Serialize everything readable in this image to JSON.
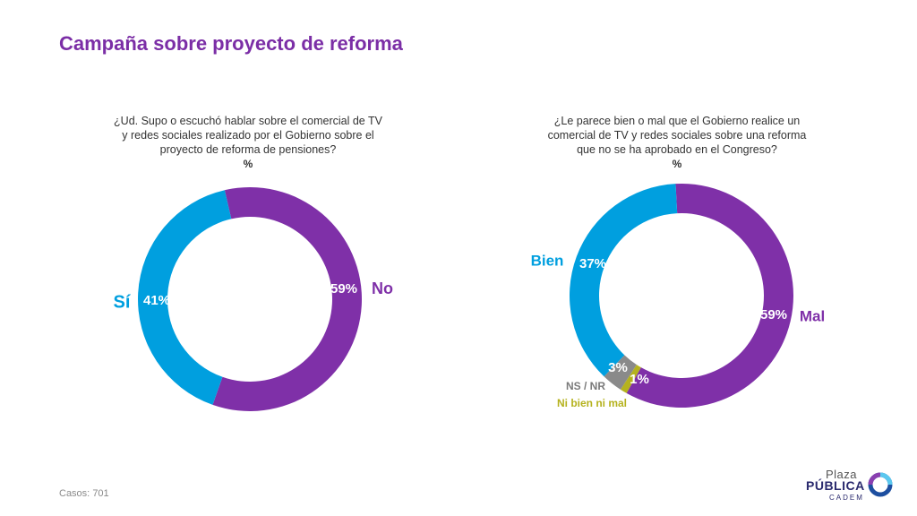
{
  "page": {
    "title": "Campaña sobre proyecto de reforma"
  },
  "footer": {
    "cases_label": "Casos:",
    "cases_value": "701"
  },
  "logo": {
    "line1": "Plaza",
    "line2": "PÚBLICA",
    "line3": "CADEM"
  },
  "colors": {
    "title": "#7b2ea6",
    "purple": "#7f30a8",
    "blue": "#009fdf",
    "gray": "#8a8a8a",
    "olive": "#b5b21e"
  },
  "chart_data": [
    {
      "type": "pie",
      "title": "¿Ud. Supo o escuchó hablar sobre el comercial de TV y redes sociales realizado por el Gobierno sobre el proyecto de reforma de pensiones?",
      "title_lines": [
        "¿Ud. Supo o escuchó hablar sobre el comercial de TV",
        "y redes sociales realizado por el Gobierno sobre el",
        "proyecto de reforma de pensiones?"
      ],
      "unit_label": "%",
      "slices": [
        {
          "label": "No",
          "value": 59,
          "value_label": "59%",
          "color": "#7f30a8"
        },
        {
          "label": "Sí",
          "value": 41,
          "value_label": "41%",
          "color": "#009fdf"
        }
      ]
    },
    {
      "type": "pie",
      "title": "¿Le parece bien o mal que el Gobierno realice un comercial de TV y redes sociales sobre una reforma que no se ha aprobado en el Congreso?",
      "title_lines": [
        "¿Le parece bien o mal que el Gobierno realice un",
        "comercial de TV y redes sociales sobre una reforma",
        "que no se ha aprobado en el Congreso?"
      ],
      "unit_label": "%",
      "slices": [
        {
          "label": "Mal",
          "value": 59,
          "value_label": "59%",
          "color": "#7f30a8"
        },
        {
          "label": "Ni bien ni mal",
          "value": 1,
          "value_label": "1%",
          "color": "#b5b21e"
        },
        {
          "label": "NS / NR",
          "value": 3,
          "value_label": "3%",
          "color": "#8a8a8a"
        },
        {
          "label": "Bien",
          "value": 37,
          "value_label": "37%",
          "color": "#009fdf"
        }
      ]
    }
  ]
}
